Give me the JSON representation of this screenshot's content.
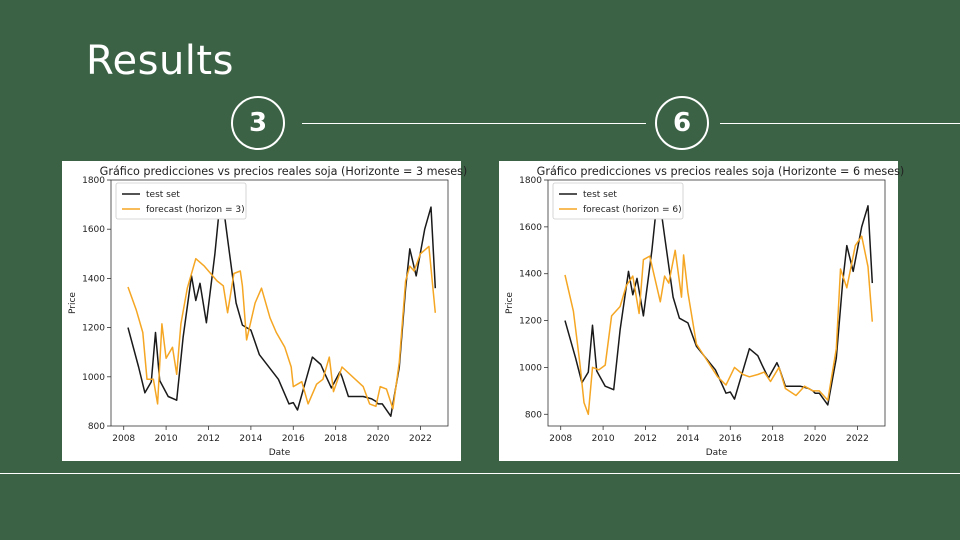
{
  "slide": {
    "title": "Results",
    "step_a": "3",
    "step_b": "6"
  },
  "colors": {
    "background": "#3c6246",
    "test": "#1a1a1a",
    "forecast": "#f5a623"
  },
  "chart_data": [
    {
      "type": "line",
      "title": "Gráfico predicciones vs precios reales soja (Horizonte = 3 meses)",
      "xlabel": "Date",
      "ylabel": "Price",
      "xlim": [
        2007.4,
        2023.3
      ],
      "ylim": [
        800,
        1800
      ],
      "xticks": [
        2008,
        2010,
        2012,
        2014,
        2016,
        2018,
        2020,
        2022
      ],
      "yticks": [
        800,
        1000,
        1200,
        1400,
        1600,
        1800
      ],
      "legend": "top-left",
      "series": [
        {
          "name": "test set",
          "color": "#1a1a1a",
          "x": [
            2008.2,
            2008.7,
            2009.0,
            2009.3,
            2009.5,
            2009.7,
            2010.1,
            2010.5,
            2010.8,
            2011.2,
            2011.4,
            2011.6,
            2011.9,
            2012.3,
            2012.6,
            2012.9,
            2013.3,
            2013.6,
            2014.0,
            2014.4,
            2015.3,
            2015.8,
            2016.0,
            2016.2,
            2016.9,
            2017.3,
            2017.5,
            2017.8,
            2018.2,
            2018.3,
            2018.6,
            2019.3,
            2019.7,
            2019.9,
            2020.0,
            2020.2,
            2020.6,
            2021.0,
            2021.3,
            2021.5,
            2021.8,
            2022.2,
            2022.5,
            2022.7
          ],
          "y": [
            1200,
            1040,
            935,
            980,
            1180,
            985,
            920,
            905,
            1160,
            1410,
            1310,
            1380,
            1220,
            1500,
            1760,
            1560,
            1300,
            1210,
            1190,
            1090,
            990,
            890,
            895,
            865,
            1080,
            1050,
            1010,
            955,
            1020,
            1000,
            920,
            920,
            910,
            900,
            890,
            890,
            840,
            1040,
            1360,
            1520,
            1410,
            1600,
            1690,
            1360
          ]
        },
        {
          "name": "forecast (horizon = 3)",
          "color": "#f5a623",
          "x": [
            2008.2,
            2008.6,
            2008.9,
            2009.1,
            2009.4,
            2009.6,
            2009.8,
            2010.0,
            2010.3,
            2010.5,
            2010.7,
            2011.0,
            2011.4,
            2011.8,
            2012.0,
            2012.4,
            2012.7,
            2012.9,
            2013.2,
            2013.5,
            2013.6,
            2013.8,
            2014.2,
            2014.5,
            2014.9,
            2015.2,
            2015.6,
            2015.9,
            2016.0,
            2016.4,
            2016.7,
            2017.1,
            2017.4,
            2017.7,
            2017.9,
            2018.1,
            2018.3,
            2019.3,
            2019.6,
            2019.9,
            2020.1,
            2020.4,
            2020.7,
            2021.0,
            2021.3,
            2021.5,
            2021.7,
            2022.0,
            2022.4,
            2022.7
          ],
          "y": [
            1365,
            1270,
            1180,
            990,
            990,
            890,
            1215,
            1075,
            1120,
            1010,
            1215,
            1360,
            1480,
            1450,
            1430,
            1390,
            1370,
            1260,
            1420,
            1430,
            1370,
            1150,
            1300,
            1360,
            1240,
            1180,
            1120,
            1040,
            960,
            980,
            890,
            970,
            990,
            1080,
            940,
            990,
            1040,
            960,
            890,
            880,
            960,
            950,
            870,
            1060,
            1390,
            1450,
            1430,
            1500,
            1530,
            1260
          ]
        }
      ]
    },
    {
      "type": "line",
      "title": "Gráfico predicciones vs precios reales soja (Horizonte = 6 meses)",
      "xlabel": "Date",
      "ylabel": "Price",
      "xlim": [
        2007.4,
        2023.3
      ],
      "ylim": [
        750,
        1800
      ],
      "xticks": [
        2008,
        2010,
        2012,
        2014,
        2016,
        2018,
        2020,
        2022
      ],
      "yticks": [
        800,
        1000,
        1200,
        1400,
        1600,
        1800
      ],
      "legend": "top-left",
      "series": [
        {
          "name": "test set",
          "color": "#1a1a1a",
          "x": [
            2008.2,
            2008.7,
            2009.0,
            2009.3,
            2009.5,
            2009.7,
            2010.1,
            2010.5,
            2010.8,
            2011.2,
            2011.4,
            2011.6,
            2011.9,
            2012.3,
            2012.6,
            2012.9,
            2013.3,
            2013.6,
            2014.0,
            2014.4,
            2015.3,
            2015.8,
            2016.0,
            2016.2,
            2016.9,
            2017.3,
            2017.5,
            2017.8,
            2018.2,
            2018.3,
            2018.6,
            2019.3,
            2019.7,
            2019.9,
            2020.0,
            2020.2,
            2020.6,
            2021.0,
            2021.3,
            2021.5,
            2021.8,
            2022.2,
            2022.5,
            2022.7
          ],
          "y": [
            1200,
            1040,
            935,
            980,
            1180,
            985,
            920,
            905,
            1160,
            1410,
            1310,
            1380,
            1220,
            1500,
            1760,
            1560,
            1300,
            1210,
            1190,
            1090,
            990,
            890,
            895,
            865,
            1080,
            1050,
            1010,
            955,
            1020,
            1000,
            920,
            920,
            910,
            900,
            890,
            890,
            840,
            1040,
            1360,
            1520,
            1410,
            1600,
            1690,
            1360
          ]
        },
        {
          "name": "forecast (horizon = 6)",
          "color": "#f5a623",
          "x": [
            2008.2,
            2008.6,
            2008.9,
            2009.1,
            2009.3,
            2009.5,
            2009.8,
            2010.1,
            2010.4,
            2010.8,
            2011.1,
            2011.4,
            2011.7,
            2011.9,
            2012.2,
            2012.7,
            2012.9,
            2013.1,
            2013.4,
            2013.7,
            2013.8,
            2014.0,
            2014.4,
            2014.9,
            2015.4,
            2015.8,
            2016.2,
            2016.6,
            2016.9,
            2017.3,
            2017.6,
            2017.9,
            2018.3,
            2018.6,
            2019.1,
            2019.5,
            2019.9,
            2020.2,
            2020.6,
            2021.0,
            2021.2,
            2021.5,
            2021.9,
            2022.2,
            2022.5,
            2022.7
          ],
          "y": [
            1395,
            1240,
            1020,
            850,
            800,
            1000,
            990,
            1010,
            1220,
            1260,
            1350,
            1390,
            1230,
            1460,
            1475,
            1280,
            1390,
            1360,
            1500,
            1300,
            1480,
            1320,
            1100,
            1030,
            960,
            925,
            1000,
            970,
            960,
            970,
            980,
            940,
            1000,
            910,
            880,
            920,
            900,
            900,
            860,
            1080,
            1420,
            1340,
            1520,
            1560,
            1430,
            1195
          ]
        }
      ]
    }
  ]
}
